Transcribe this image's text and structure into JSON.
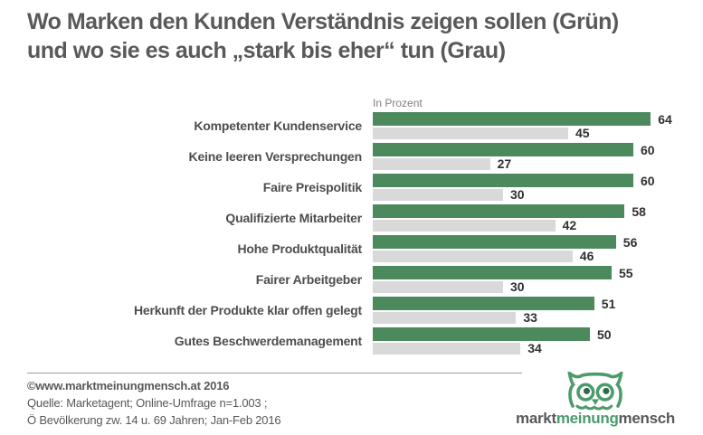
{
  "title": {
    "line1": "Wo Marken den Kunden Verständnis zeigen sollen (Grün)",
    "line2": "und wo sie es auch „stark bis eher“ tun (Grau)"
  },
  "chart_data": {
    "type": "bar",
    "orientation": "horizontal",
    "axis_note": "In Prozent",
    "unit": "percent",
    "categories": [
      "Kompetenter Kundenservice",
      "Keine leeren Versprechungen",
      "Faire Preispolitik",
      "Qualifizierte Mitarbeiter",
      "Hohe Produktqualität",
      "Fairer Arbeitgeber",
      "Herkunft der Produkte klar offen gelegt",
      "Gutes Beschwerdemanagement"
    ],
    "series": [
      {
        "name": "sollen (Grün)",
        "color": "#4c8a5e",
        "values": [
          64,
          60,
          60,
          58,
          56,
          55,
          51,
          50
        ]
      },
      {
        "name": "tun (Grau)",
        "color": "#d9d9d9",
        "values": [
          45,
          27,
          30,
          42,
          46,
          30,
          33,
          34
        ]
      }
    ],
    "xlim": [
      0,
      64
    ],
    "value_labels": true,
    "grid": false,
    "legend": false
  },
  "footer": {
    "copyright": "©www.marktmeinungmensch.at 2016",
    "source_line1": "Quelle: Marketagent; Online-Umfrage n=1.003 ;",
    "source_line2": "Ö Bevölkerung zw. 14 u. 69 Jahren; Jan-Feb 2016"
  },
  "logo": {
    "part1": "markt",
    "part2": "meinung",
    "part3": "mensch"
  },
  "colors": {
    "green_bar": "#4c8a5e",
    "gray_bar": "#d9d9d9",
    "title_text": "#595959",
    "value_text": "#303030",
    "logo_green": "#4c9b6c"
  }
}
